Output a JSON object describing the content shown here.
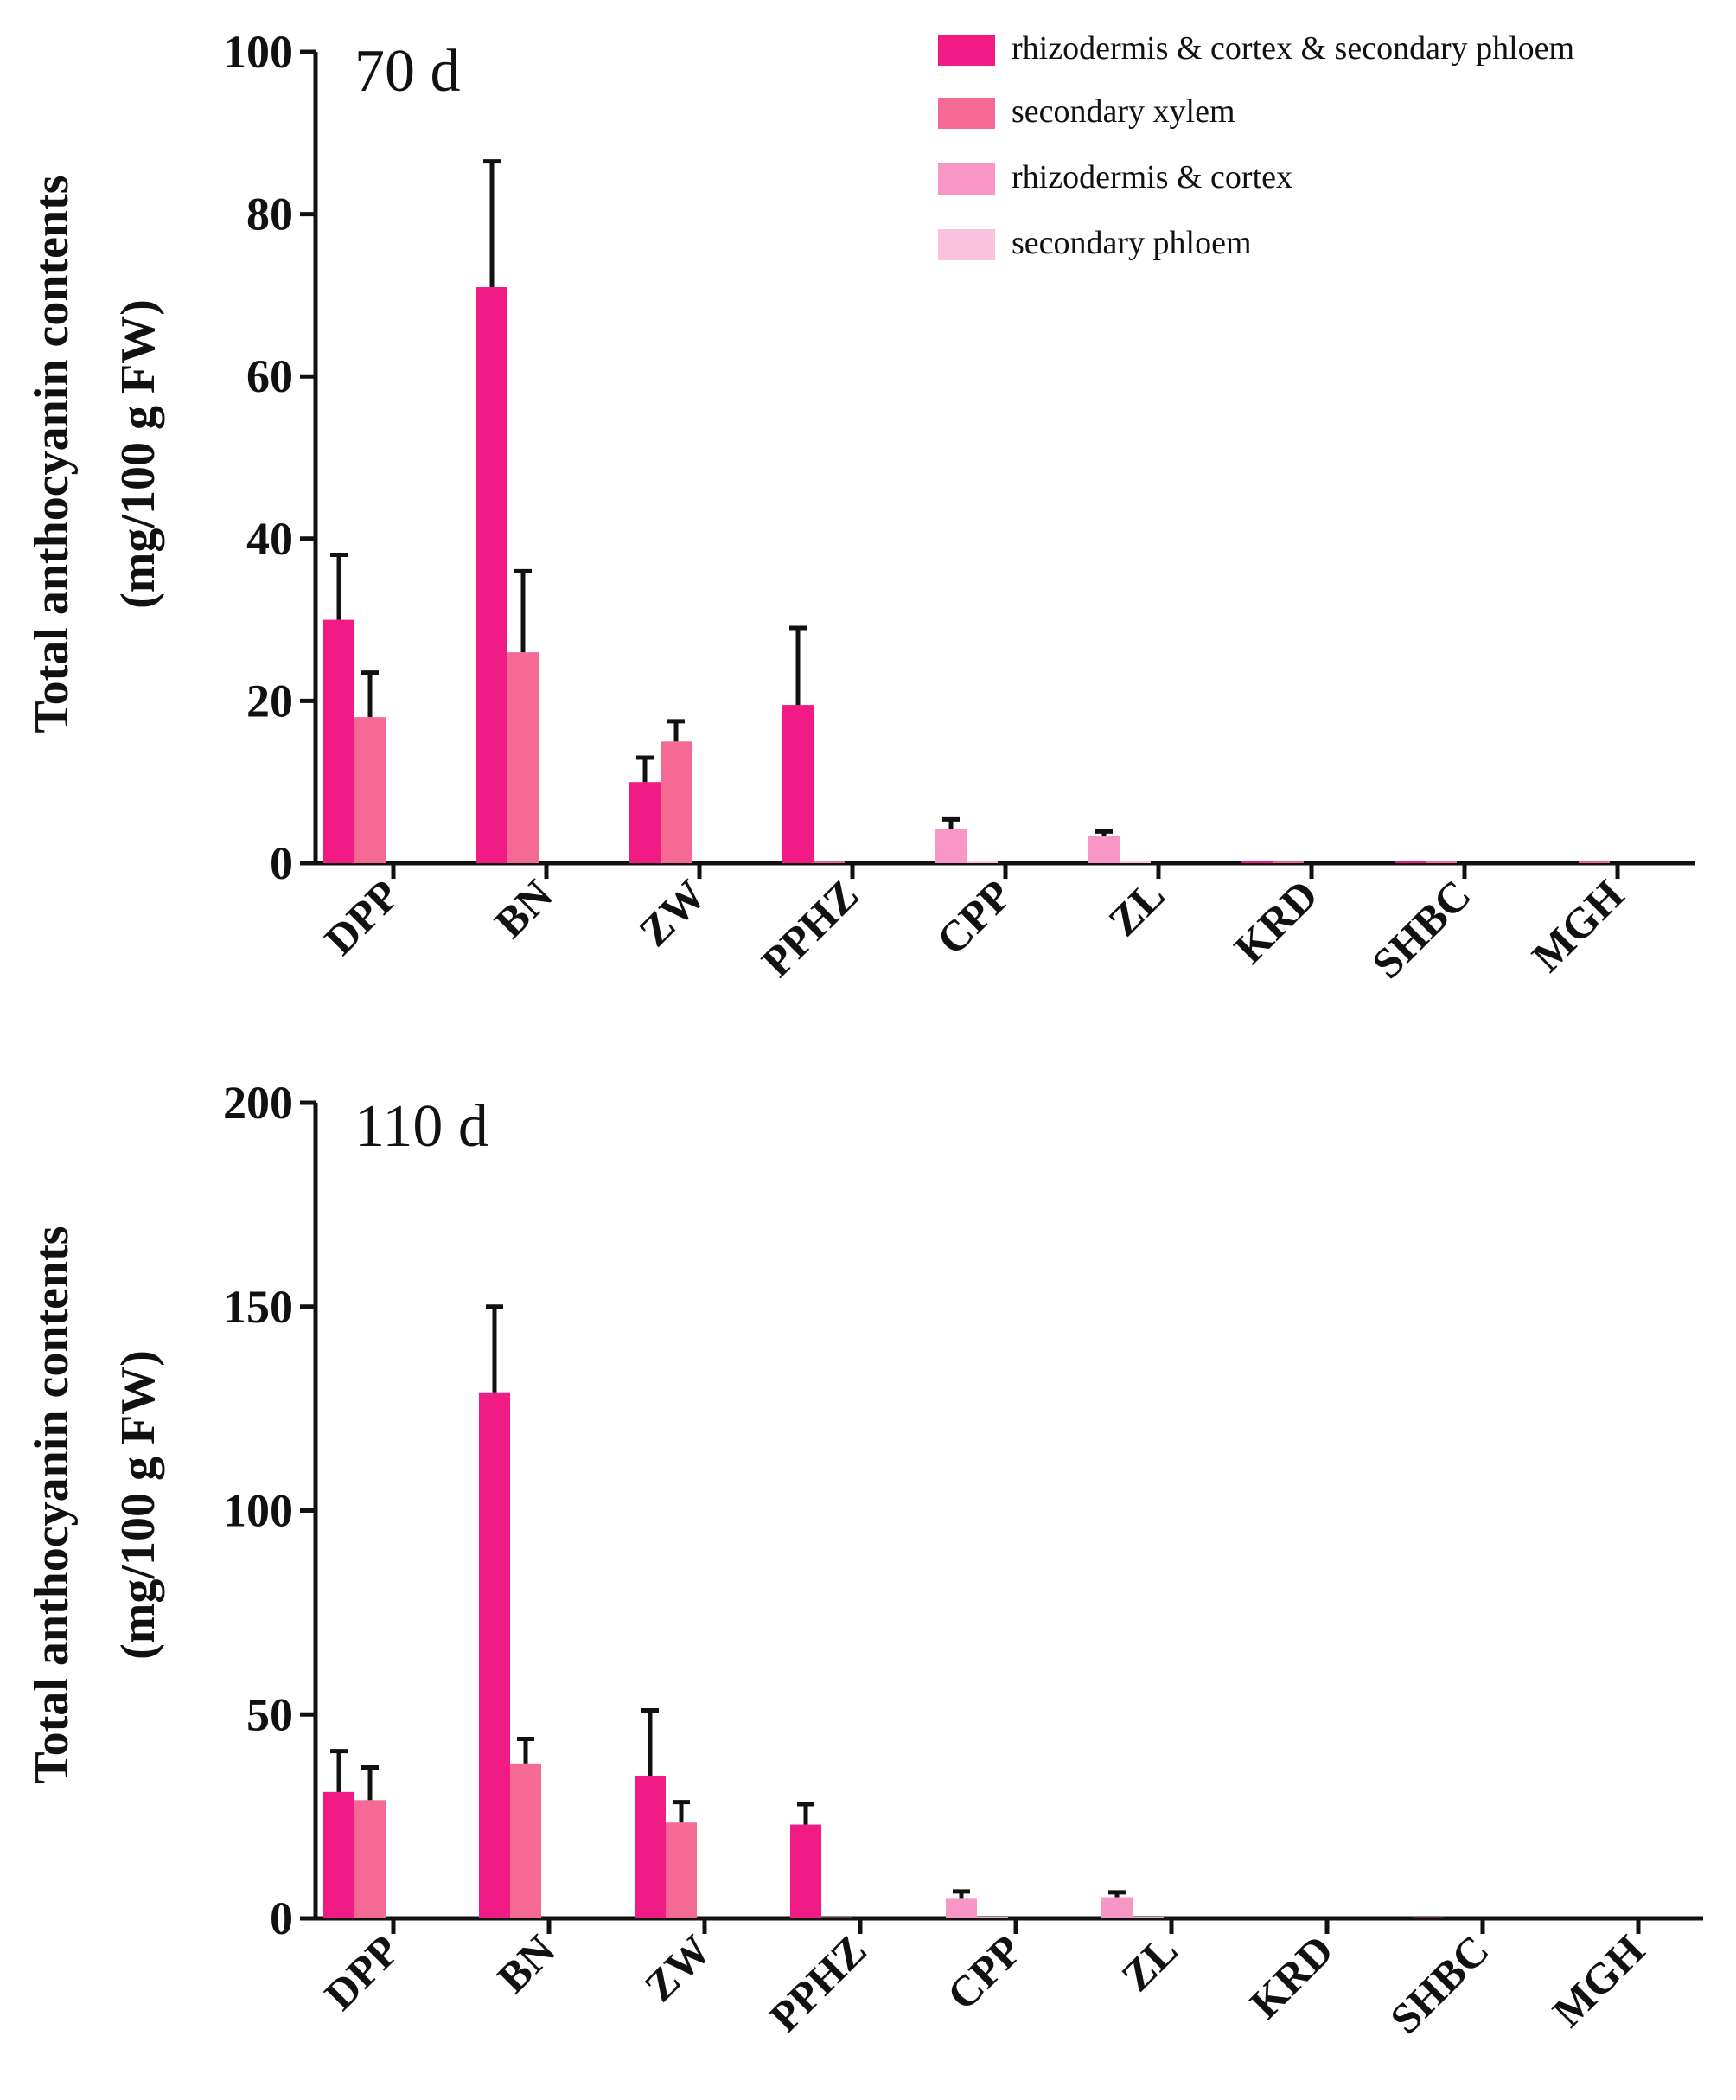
{
  "colors": {
    "rhizodermis & cortex & secondary phloem": "#f01b85",
    "secondary xylem": "#f46a94",
    "rhizodermis & cortex": "#f896c6",
    "secondary phloem": "#fbc2dd",
    "axis": "#111111",
    "error_bar": "#111111"
  },
  "legend": [
    "rhizodermis & cortex & secondary phloem",
    "secondary xylem",
    "rhizodermis & cortex",
    "secondary phloem"
  ],
  "chart_data": [
    {
      "type": "bar",
      "title": "70 d",
      "xlabel": "",
      "ylabel_line1": "Total anthocyanin contents",
      "ylabel_line2": "(mg/100 g FW)",
      "ylim": [
        0,
        100
      ],
      "yticks": [
        0,
        20,
        40,
        60,
        80,
        100
      ],
      "categories": [
        "DPP",
        "BN",
        "ZW",
        "PPHZ",
        "CPP",
        "ZL",
        "KRD",
        "SHBC",
        "MGH"
      ],
      "series": [
        {
          "name": "rhizodermis & cortex & secondary phloem",
          "values": [
            30,
            71,
            10,
            19.5,
            null,
            0.2,
            0.2,
            0.2,
            null
          ],
          "errors": [
            8,
            15.5,
            3,
            9.5,
            null,
            0,
            0,
            0,
            null
          ]
        },
        {
          "name": "secondary xylem",
          "values": [
            18,
            26,
            15,
            0.2,
            null,
            0.2,
            0.2,
            0.3,
            0.2
          ],
          "errors": [
            5.5,
            10,
            2.5,
            0,
            null,
            0,
            0,
            0,
            0
          ]
        },
        {
          "name": "rhizodermis & cortex",
          "values": [
            null,
            null,
            null,
            null,
            4.2,
            3.3,
            null,
            null,
            null
          ],
          "errors": [
            null,
            null,
            null,
            null,
            1.2,
            0.6,
            null,
            null,
            null
          ]
        },
        {
          "name": "secondary phloem",
          "values": [
            null,
            null,
            null,
            null,
            0.3,
            0.3,
            null,
            null,
            null
          ],
          "errors": [
            null,
            null,
            null,
            null,
            0,
            0,
            null,
            null,
            null
          ]
        }
      ]
    },
    {
      "type": "bar",
      "title": "110 d",
      "xlabel": "",
      "ylabel_line1": "Total anthocyanin contents",
      "ylabel_line2": "(mg/100 g FW)",
      "ylim": [
        0,
        200
      ],
      "yticks": [
        0,
        50,
        100,
        150,
        200
      ],
      "categories": [
        "DPP",
        "BN",
        "ZW",
        "PPHZ",
        "CPP",
        "ZL",
        "KRD",
        "SHBC",
        "MGH"
      ],
      "series": [
        {
          "name": "rhizodermis & cortex & secondary phloem",
          "values": [
            31,
            129,
            35,
            23,
            null,
            0.5,
            null,
            0.3,
            null
          ],
          "errors": [
            10,
            21,
            16,
            5,
            null,
            0,
            null,
            0,
            null
          ]
        },
        {
          "name": "secondary xylem",
          "values": [
            29,
            38,
            23.5,
            0.3,
            null,
            null,
            null,
            null,
            null
          ],
          "errors": [
            8,
            6,
            5,
            0,
            null,
            null,
            null,
            null,
            null
          ]
        },
        {
          "name": "rhizodermis & cortex",
          "values": [
            null,
            null,
            null,
            null,
            4.8,
            5.2,
            null,
            null,
            null
          ],
          "errors": [
            null,
            null,
            null,
            null,
            1.8,
            1.2,
            null,
            null,
            null
          ]
        },
        {
          "name": "secondary phloem",
          "values": [
            null,
            null,
            null,
            null,
            0.4,
            0.4,
            null,
            null,
            null
          ],
          "errors": [
            null,
            null,
            null,
            null,
            0,
            0,
            null,
            null,
            null
          ]
        }
      ]
    }
  ]
}
